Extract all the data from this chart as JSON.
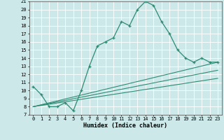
{
  "xlabel": "Humidex (Indice chaleur)",
  "ylabel": "",
  "bg_color": "#cce8e8",
  "grid_color": "#ffffff",
  "line_color": "#2e8b74",
  "xlim": [
    -0.5,
    23.5
  ],
  "ylim": [
    7,
    21
  ],
  "xticks": [
    0,
    1,
    2,
    3,
    4,
    5,
    6,
    7,
    8,
    9,
    10,
    11,
    12,
    13,
    14,
    15,
    16,
    17,
    18,
    19,
    20,
    21,
    22,
    23
  ],
  "yticks": [
    7,
    8,
    9,
    10,
    11,
    12,
    13,
    14,
    15,
    16,
    17,
    18,
    19,
    20,
    21
  ],
  "main_x": [
    0,
    1,
    2,
    3,
    4,
    5,
    6,
    7,
    8,
    9,
    10,
    11,
    12,
    13,
    14,
    15,
    16,
    17,
    18,
    19,
    20,
    21,
    22,
    23
  ],
  "main_y": [
    10.5,
    9.5,
    8.0,
    8.0,
    8.5,
    7.5,
    10.0,
    13.0,
    15.5,
    16.0,
    16.5,
    18.5,
    18.0,
    20.0,
    21.0,
    20.5,
    18.5,
    17.0,
    15.0,
    14.0,
    13.5,
    14.0,
    13.5,
    13.5
  ],
  "line1_x": [
    0,
    23
  ],
  "line1_y": [
    8.0,
    13.5
  ],
  "line2_x": [
    0,
    23
  ],
  "line2_y": [
    8.0,
    12.5
  ],
  "line3_x": [
    0,
    23
  ],
  "line3_y": [
    8.0,
    11.5
  ],
  "tick_fontsize": 5.0,
  "xlabel_fontsize": 6.0
}
